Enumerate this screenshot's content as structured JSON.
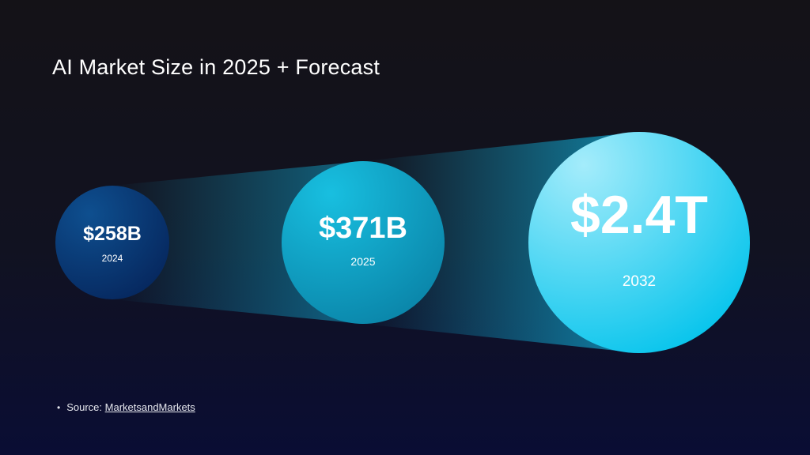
{
  "title": "AI Market Size in 2025 + Forecast",
  "source": {
    "bullet": "•",
    "label": "Source:",
    "link_text": "MarketsandMarkets"
  },
  "colors": {
    "circle_2024_light": "#0e4f8f",
    "circle_2024_dark": "#06275e",
    "circle_2025_light": "#18bfe0",
    "circle_2025_dark": "#0a84a8",
    "circle_2032_light": "#a4ecfb",
    "circle_2032_dark": "#06c4ec",
    "beam": "#11a8d0"
  },
  "chart_data": {
    "type": "bubble",
    "title": "AI Market Size in 2025 + Forecast",
    "unit": "USD",
    "points": [
      {
        "year": "2024",
        "value": 258,
        "unit": "B",
        "label": "$258B"
      },
      {
        "year": "2025",
        "value": 371,
        "unit": "B",
        "label": "$371B"
      },
      {
        "year": "2032",
        "value": 2400,
        "unit": "B",
        "label": "$2.4T"
      }
    ]
  }
}
